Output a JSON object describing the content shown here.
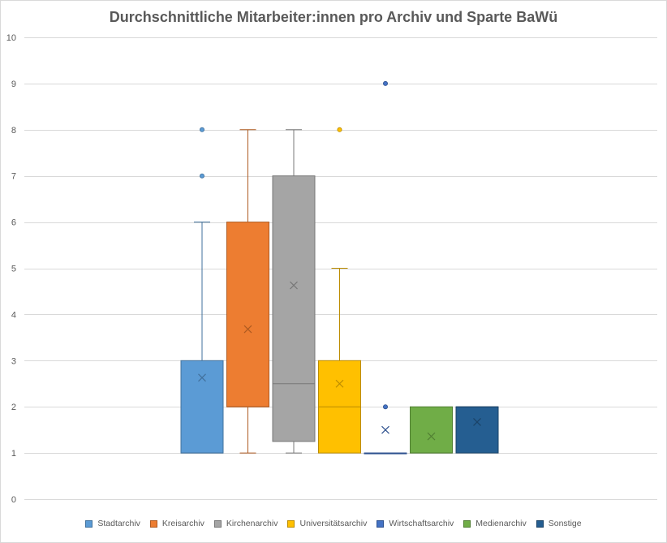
{
  "chart_data": {
    "type": "box",
    "title": "Durchschnittliche Mitarbeiter:innen pro Archiv und Sparte BaWü",
    "xlabel": "",
    "ylabel": "",
    "ylim": [
      0,
      10
    ],
    "yticks": [
      0,
      1,
      2,
      3,
      4,
      5,
      6,
      7,
      8,
      9,
      10
    ],
    "grid": true,
    "legend_position": "bottom",
    "series": [
      {
        "name": "Stadtarchiv",
        "color": "#5B9BD5",
        "edge_color": "#41719C",
        "min": 1,
        "q1": 1,
        "median": 1,
        "q3": 3,
        "max": 6,
        "mean": 2.63,
        "outliers": [
          7,
          8
        ]
      },
      {
        "name": "Kreisarchiv",
        "color": "#ED7D31",
        "edge_color": "#AE5A21",
        "min": 1,
        "q1": 2,
        "median": 2,
        "q3": 6,
        "max": 8,
        "mean": 3.68,
        "outliers": []
      },
      {
        "name": "Kirchenarchiv",
        "color": "#A5A5A5",
        "edge_color": "#787878",
        "min": 1,
        "q1": 1.25,
        "median": 2.5,
        "q3": 7,
        "max": 8,
        "mean": 4.63,
        "outliers": []
      },
      {
        "name": "Universitätsarchiv",
        "color": "#FFC000",
        "edge_color": "#BC8C00",
        "min": 1,
        "q1": 1,
        "median": 2,
        "q3": 3,
        "max": 5,
        "mean": 2.5,
        "outliers": [
          8
        ]
      },
      {
        "name": "Wirtschaftsarchiv",
        "color": "#4472C4",
        "edge_color": "#2F528F",
        "min": 1,
        "q1": 1,
        "median": 1,
        "q3": 1,
        "max": 1,
        "mean": 1.5,
        "outliers": [
          2,
          9
        ]
      },
      {
        "name": "Medienarchiv",
        "color": "#70AD47",
        "edge_color": "#507E32",
        "min": 1,
        "q1": 1,
        "median": 1,
        "q3": 2,
        "max": 2,
        "mean": 1.36,
        "outliers": []
      },
      {
        "name": "Sonstige",
        "color": "#255E91",
        "edge_color": "#1B4367",
        "min": 1,
        "q1": 1,
        "median": 2,
        "q3": 2,
        "max": 2,
        "mean": 1.67,
        "outliers": []
      }
    ]
  }
}
